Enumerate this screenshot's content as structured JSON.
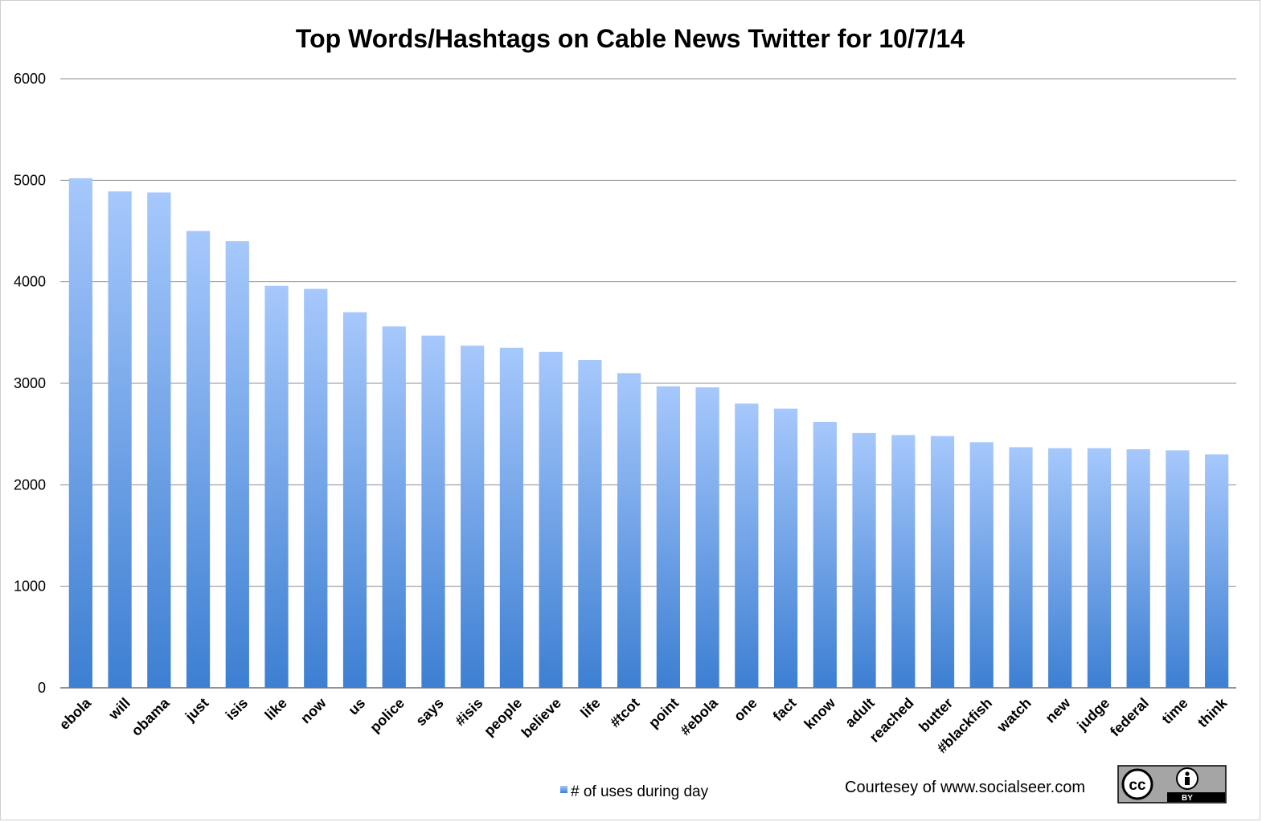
{
  "chart_data": {
    "type": "bar",
    "title": "Top Words/Hashtags on Cable News Twitter for 10/7/14",
    "xlabel": "",
    "ylabel": "",
    "ylim": [
      0,
      6000
    ],
    "yticks": [
      0,
      1000,
      2000,
      3000,
      4000,
      5000,
      6000
    ],
    "grid": true,
    "legend_position": "bottom",
    "categories": [
      "ebola",
      "will",
      "obama",
      "just",
      "isis",
      "like",
      "now",
      "us",
      "police",
      "says",
      "#isis",
      "people",
      "believe",
      "life",
      "#tcot",
      "point",
      "#ebola",
      "one",
      "fact",
      "know",
      "adult",
      "reached",
      "butter",
      "#blackfish",
      "watch",
      "new",
      "judge",
      "federal",
      "time",
      "think"
    ],
    "series": [
      {
        "name": "# of uses during day",
        "values": [
          5020,
          4890,
          4880,
          4500,
          4400,
          3960,
          3930,
          3700,
          3560,
          3470,
          3370,
          3350,
          3310,
          3230,
          3100,
          2970,
          2960,
          2800,
          2750,
          2620,
          2510,
          2490,
          2480,
          2420,
          2370,
          2360,
          2360,
          2350,
          2340,
          2300
        ]
      }
    ],
    "colors": {
      "bar_top": "#a6c8fc",
      "bar_bottom": "#3d7fd2",
      "grid": "#8c8c8c"
    }
  },
  "footer": {
    "credit": "Courtesey of www.socialseer.com",
    "license_badge": {
      "icon": "creative-commons-by-icon",
      "cc_text": "cc",
      "by_text": "BY"
    }
  }
}
